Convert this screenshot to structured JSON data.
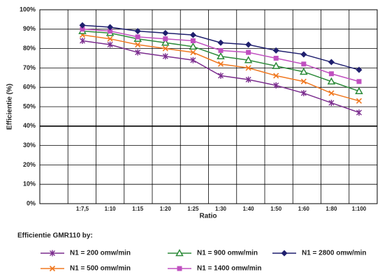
{
  "chart_data": {
    "type": "line",
    "y_label": "Efficientie (%)",
    "x_label": "Ratio",
    "legend_title": "Efficientie GMR110 by:",
    "categories": [
      "1:7,5",
      "1:10",
      "1:15",
      "1:20",
      "1:25",
      "1:30",
      "1:40",
      "1:50",
      "1:60",
      "1:80",
      "1:100"
    ],
    "series": [
      {
        "name": "N1 = 200 omw/min",
        "color": "#7b2d8e",
        "marker": "star",
        "values": [
          84,
          82,
          78,
          76,
          74,
          66,
          64,
          61,
          57,
          52,
          47
        ]
      },
      {
        "name": "N1 = 500 omw/min",
        "color": "#f07820",
        "marker": "x",
        "values": [
          87,
          85,
          82,
          80,
          78,
          72,
          70,
          66,
          63,
          57,
          53
        ]
      },
      {
        "name": "N1 = 900 omw/min",
        "color": "#2e8b3a",
        "marker": "triangle",
        "values": [
          89,
          88,
          85,
          83,
          81,
          76,
          74,
          71,
          68,
          63,
          58
        ]
      },
      {
        "name": "N1 = 1400 omw/min",
        "color": "#c050c0",
        "marker": "square",
        "values": [
          90,
          89,
          86,
          85,
          84,
          79,
          78,
          75,
          72,
          67,
          63
        ]
      },
      {
        "name": "N1 = 2800 omw/min",
        "color": "#1f1f6e",
        "marker": "diamond",
        "values": [
          92,
          91,
          89,
          88,
          87,
          83,
          82,
          79,
          77,
          73,
          69
        ]
      }
    ],
    "ylim": [
      0,
      100
    ],
    "yticks": [
      {
        "value": 0,
        "label": "0%"
      },
      {
        "value": 10,
        "label": "10%"
      },
      {
        "value": 20,
        "label": "20%"
      },
      {
        "value": 30,
        "label": "30%"
      },
      {
        "value": 40,
        "label": "40%"
      },
      {
        "value": 50,
        "label": "50%"
      },
      {
        "value": 60,
        "label": "60%"
      },
      {
        "value": 70,
        "label": "70%"
      },
      {
        "value": 80,
        "label": "80%"
      },
      {
        "value": 90,
        "label": "90%"
      },
      {
        "value": 100,
        "label": "100%"
      }
    ],
    "grid": true
  }
}
